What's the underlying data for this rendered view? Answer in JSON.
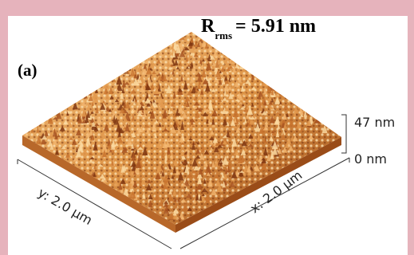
{
  "figure": {
    "panel_label": "(a)",
    "roughness": {
      "symbol": "R",
      "subscript": "rms",
      "value": "= 5.91 nm"
    },
    "height_scale": {
      "max_label": "47 nm",
      "min_label": "0 nm"
    },
    "axes": {
      "x_label": "x: 2.0 µm",
      "y_label": "y: 2.0 µm"
    },
    "colors": {
      "frame": "#e6b3bc",
      "surface_light": "#f7c98a",
      "surface_mid": "#d98a3c",
      "surface_dark": "#8a3e10"
    }
  }
}
